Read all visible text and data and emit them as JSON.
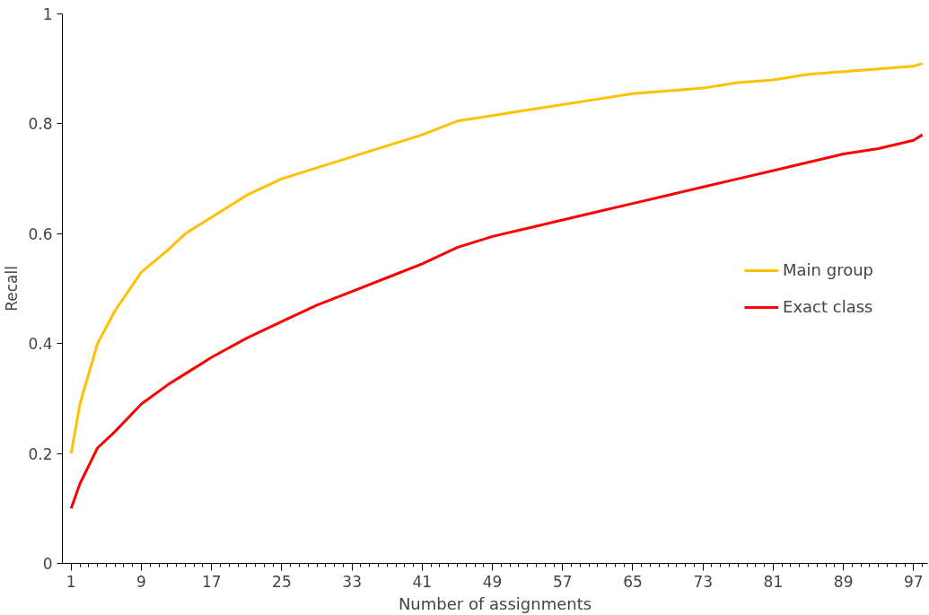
{
  "chart_data": {
    "type": "line",
    "xlabel": "Number of assignments",
    "ylabel": "Recall",
    "xlim": [
      0,
      98.6
    ],
    "xticks": [
      1,
      9,
      17,
      25,
      33,
      41,
      49,
      57,
      65,
      73,
      81,
      89,
      97
    ],
    "ylim": [
      0,
      1
    ],
    "yticks": [
      0,
      0.2,
      0.4,
      0.6,
      0.8,
      1
    ],
    "x": [
      1,
      2,
      4,
      6,
      9,
      12,
      14,
      17,
      21,
      25,
      29,
      33,
      37,
      41,
      45,
      49,
      53,
      57,
      61,
      65,
      69,
      73,
      77,
      81,
      85,
      89,
      93,
      97,
      98
    ],
    "series": [
      {
        "name": "Main group",
        "color": "#ffc000",
        "values": [
          0.2,
          0.29,
          0.4,
          0.46,
          0.53,
          0.57,
          0.6,
          0.63,
          0.67,
          0.7,
          0.72,
          0.74,
          0.76,
          0.78,
          0.805,
          0.815,
          0.825,
          0.835,
          0.845,
          0.855,
          0.86,
          0.865,
          0.875,
          0.88,
          0.89,
          0.895,
          0.9,
          0.905,
          0.91
        ]
      },
      {
        "name": "Exact class",
        "color": "#ff0000",
        "values": [
          0.1,
          0.145,
          0.21,
          0.24,
          0.29,
          0.325,
          0.345,
          0.375,
          0.41,
          0.44,
          0.47,
          0.495,
          0.52,
          0.545,
          0.575,
          0.595,
          0.61,
          0.625,
          0.64,
          0.655,
          0.67,
          0.685,
          0.7,
          0.715,
          0.73,
          0.745,
          0.755,
          0.77,
          0.78
        ]
      }
    ],
    "legend": "right",
    "grid": false,
    "line_style": "solid",
    "marker": "none"
  }
}
